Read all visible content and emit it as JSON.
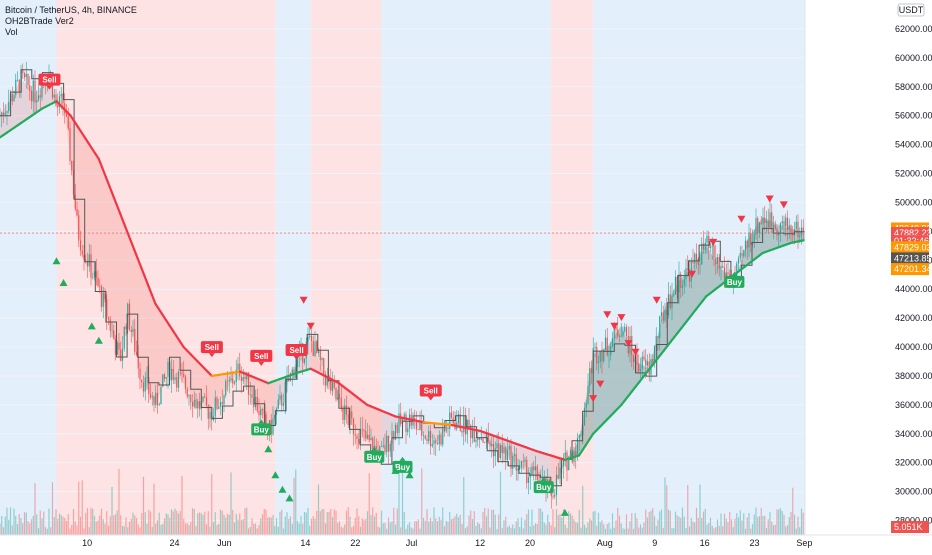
{
  "legend": {
    "symbol_line": "Bitcoin / TetherUS, 4h, BINANCE",
    "indicator_line": "OH2BTrade Ver2",
    "volume_line": "Vol"
  },
  "currency_label": "USDT",
  "colors": {
    "red_zone": "#fde3e3",
    "blue_zone": "#e3effb",
    "up_candle": "#26a69a",
    "down_candle": "#ef5350",
    "sell_tag": "#f23645",
    "buy_tag": "#22ab5c",
    "ema_red": "#f23645",
    "ema_green": "#22ab5c",
    "ema_orange": "#ff9800",
    "step_line": "#555555"
  },
  "chart_data": {
    "type": "candlestick",
    "ylim": [
      27000,
      64000
    ],
    "y_ticks": [
      28000,
      30000,
      32000,
      34000,
      36000,
      38000,
      40000,
      42000,
      44000,
      46000,
      48000,
      50000,
      52000,
      54000,
      56000,
      58000,
      60000,
      62000
    ],
    "y_tick_labels": [
      "28000.00",
      "30000.00",
      "32000.00",
      "34000.00",
      "36000.00",
      "38000.00",
      "40000.00",
      "42000.00",
      "44000.00",
      "46000.00",
      "48000.00",
      "50000.00",
      "52000.00",
      "54000.00",
      "56000.00",
      "58000.00",
      "60000.00",
      "62000.00"
    ],
    "x_range_days": [
      0,
      114
    ],
    "x_ticks": [
      {
        "day": 9,
        "label": "10"
      },
      {
        "day": 23,
        "label": "24"
      },
      {
        "day": 31,
        "label": "Jun"
      },
      {
        "day": 44,
        "label": "14"
      },
      {
        "day": 52,
        "label": "22"
      },
      {
        "day": 61,
        "label": "Jul"
      },
      {
        "day": 72,
        "label": "12"
      },
      {
        "day": 80,
        "label": "20"
      },
      {
        "day": 92,
        "label": "Aug"
      },
      {
        "day": 100,
        "label": "9"
      },
      {
        "day": 108,
        "label": "16"
      },
      {
        "day": 116,
        "label": "23"
      },
      {
        "day": 124,
        "label": "Sep"
      }
    ],
    "price_path": [
      [
        0,
        56000
      ],
      [
        3,
        58500
      ],
      [
        5,
        57500
      ],
      [
        7,
        59000
      ],
      [
        8,
        56500
      ],
      [
        9,
        57000
      ],
      [
        10,
        53000
      ],
      [
        11,
        48000
      ],
      [
        12,
        46500
      ],
      [
        14,
        44000
      ],
      [
        15,
        42500
      ],
      [
        17,
        39000
      ],
      [
        18,
        42500
      ],
      [
        20,
        38000
      ],
      [
        22,
        36000
      ],
      [
        24,
        38500
      ],
      [
        26,
        37500
      ],
      [
        28,
        36000
      ],
      [
        30,
        35500
      ],
      [
        32,
        37000
      ],
      [
        34,
        38500
      ],
      [
        36,
        36500
      ],
      [
        38,
        34000
      ],
      [
        40,
        36500
      ],
      [
        42,
        39000
      ],
      [
        44,
        40500
      ],
      [
        46,
        38000
      ],
      [
        48,
        36000
      ],
      [
        50,
        34500
      ],
      [
        52,
        33500
      ],
      [
        54,
        32500
      ],
      [
        56,
        34500
      ],
      [
        58,
        35000
      ],
      [
        60,
        34000
      ],
      [
        62,
        33500
      ],
      [
        64,
        35000
      ],
      [
        66,
        34500
      ],
      [
        68,
        34000
      ],
      [
        70,
        33000
      ],
      [
        72,
        32500
      ],
      [
        74,
        31500
      ],
      [
        76,
        31000
      ],
      [
        78,
        29800
      ],
      [
        80,
        32000
      ],
      [
        82,
        33500
      ],
      [
        84,
        39500
      ],
      [
        86,
        40000
      ],
      [
        88,
        41500
      ],
      [
        90,
        39000
      ],
      [
        92,
        38500
      ],
      [
        94,
        42500
      ],
      [
        96,
        44500
      ],
      [
        98,
        45500
      ],
      [
        100,
        47000
      ],
      [
        102,
        45500
      ],
      [
        104,
        44500
      ],
      [
        106,
        47500
      ],
      [
        108,
        49000
      ],
      [
        110,
        48500
      ],
      [
        112,
        48200
      ],
      [
        114,
        47900
      ]
    ],
    "ema_path": [
      [
        0,
        54500
      ],
      [
        6,
        56500
      ],
      [
        8,
        57000
      ],
      [
        10,
        56000
      ],
      [
        14,
        53000
      ],
      [
        18,
        48000
      ],
      [
        22,
        43000
      ],
      [
        26,
        40000
      ],
      [
        30,
        38000
      ],
      [
        34,
        38300
      ],
      [
        38,
        37500
      ],
      [
        42,
        38200
      ],
      [
        44,
        38500
      ],
      [
        48,
        37500
      ],
      [
        52,
        36000
      ],
      [
        56,
        35200
      ],
      [
        60,
        34800
      ],
      [
        64,
        34600
      ],
      [
        68,
        34200
      ],
      [
        72,
        33500
      ],
      [
        76,
        32800
      ],
      [
        80,
        32200
      ],
      [
        82,
        32500
      ],
      [
        84,
        34000
      ],
      [
        88,
        36000
      ],
      [
        92,
        38500
      ],
      [
        96,
        41000
      ],
      [
        100,
        43500
      ],
      [
        104,
        45000
      ],
      [
        108,
        46500
      ],
      [
        112,
        47200
      ],
      [
        114,
        47400
      ]
    ],
    "zones": [
      {
        "from": 0,
        "to": 8,
        "color": "blue"
      },
      {
        "from": 8,
        "to": 39,
        "color": "red"
      },
      {
        "from": 39,
        "to": 44,
        "color": "blue"
      },
      {
        "from": 44,
        "to": 54,
        "color": "red"
      },
      {
        "from": 54,
        "to": 78,
        "color": "blue"
      },
      {
        "from": 78,
        "to": 84,
        "color": "red"
      },
      {
        "from": 84,
        "to": 114,
        "color": "blue"
      }
    ],
    "signals": [
      {
        "type": "sell",
        "day": 7,
        "price": 57800,
        "label": "Sell"
      },
      {
        "type": "sell",
        "day": 30,
        "price": 39300,
        "label": "Sell"
      },
      {
        "type": "sell",
        "day": 37,
        "price": 38700,
        "label": "Sell"
      },
      {
        "type": "sell",
        "day": 42,
        "price": 39100,
        "label": "Sell"
      },
      {
        "type": "sell",
        "day": 61,
        "price": 36300,
        "label": "Sell"
      },
      {
        "type": "buy",
        "day": 37,
        "price": 35000,
        "label": "Buy"
      },
      {
        "type": "buy",
        "day": 53,
        "price": 33100,
        "label": "Buy"
      },
      {
        "type": "buy",
        "day": 57,
        "price": 32400,
        "label": "Buy"
      },
      {
        "type": "buy",
        "day": 77,
        "price": 31000,
        "label": "Buy"
      },
      {
        "type": "buy",
        "day": 104,
        "price": 45200,
        "label": "Buy"
      }
    ],
    "price_labels": [
      {
        "text": "48049.92",
        "price": 48200,
        "color": "#ff9800"
      },
      {
        "text": "47882.23",
        "price": 47882,
        "color": "#ef5350"
      },
      {
        "text": "01:32:46",
        "price": 47320,
        "color": "#ef5350"
      },
      {
        "text": "47829.03",
        "price": 46900,
        "color": "#ff9800"
      },
      {
        "text": "47213.85",
        "price": 46130,
        "color": "#555555"
      },
      {
        "text": "47201.34",
        "price": 45390,
        "color": "#ff9800"
      }
    ],
    "volume_label": "5.051K"
  }
}
